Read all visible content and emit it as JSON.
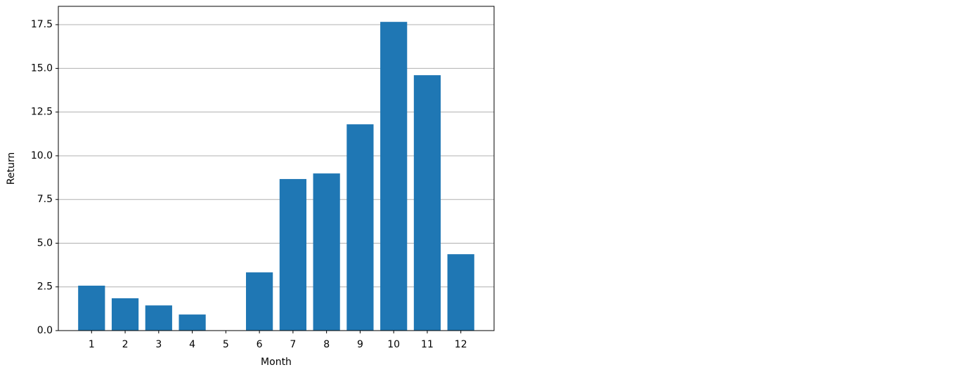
{
  "chart_data": {
    "type": "bar",
    "x": [
      1,
      2,
      3,
      4,
      5,
      6,
      7,
      8,
      9,
      10,
      11,
      12
    ],
    "values": [
      2.57,
      1.85,
      1.44,
      0.92,
      0,
      3.33,
      8.67,
      8.99,
      11.8,
      17.66,
      14.61,
      4.37
    ],
    "color": "#1f77b4",
    "bar_width": 0.8,
    "xlabel": "Month",
    "ylabel": "Return",
    "xlim": [
      0.01,
      12.99
    ],
    "xticks": [
      1,
      2,
      3,
      4,
      5,
      6,
      7,
      8,
      9,
      10,
      11,
      12
    ],
    "ylim": [
      0,
      18.55
    ],
    "yticks": [
      {
        "value": 0,
        "label": "0.0"
      },
      2.5,
      {
        "value": 5,
        "label": "5.0"
      },
      7.5,
      {
        "value": 10,
        "label": "10.0"
      },
      12.5,
      {
        "value": 15,
        "label": "15.0"
      },
      17.5
    ],
    "grid": "y"
  }
}
